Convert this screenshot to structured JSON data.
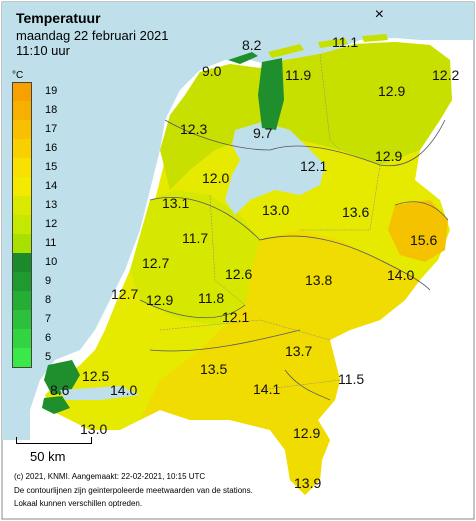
{
  "header": {
    "title": "Temperatuur",
    "date": "maandag 22 februari 2021",
    "time": "11:10 uur"
  },
  "close_label": "×",
  "legend": {
    "unit": "°C",
    "items": [
      {
        "label": "19",
        "color": "#f7a100"
      },
      {
        "label": "18",
        "color": "#f8b000"
      },
      {
        "label": "17",
        "color": "#f8c000"
      },
      {
        "label": "16",
        "color": "#f8d000"
      },
      {
        "label": "15",
        "color": "#f8e000"
      },
      {
        "label": "14",
        "color": "#f4ea00"
      },
      {
        "label": "13",
        "color": "#d9ea00"
      },
      {
        "label": "12",
        "color": "#c4e800"
      },
      {
        "label": "11",
        "color": "#a8e000"
      },
      {
        "label": "10",
        "color": "#1a8a2a"
      },
      {
        "label": "9",
        "color": "#1f9a30"
      },
      {
        "label": "8",
        "color": "#25ad36"
      },
      {
        "label": "7",
        "color": "#2cc03c"
      },
      {
        "label": "6",
        "color": "#33d442"
      },
      {
        "label": "5",
        "color": "#3ae848"
      }
    ]
  },
  "colors": {
    "sea": "#bfe0ea",
    "land_north": "#c8e000",
    "land_central": "#e6ea00",
    "land_south": "#f0dc00",
    "warm_spot": "#f5c200",
    "cold_spot": "#1f8f2e",
    "foreign_land": "#ffffff"
  },
  "stations": [
    {
      "name": "station-den-helder-north",
      "value": "8.2"
    },
    {
      "name": "station-wadden-east",
      "value": "11.1"
    },
    {
      "name": "station-texel",
      "value": "9.0"
    },
    {
      "name": "station-leeuwarden",
      "value": "11.9"
    },
    {
      "name": "station-groningen-east",
      "value": "12.2"
    },
    {
      "name": "station-den-helder",
      "value": "12.3"
    },
    {
      "name": "station-stavoren",
      "value": "9.7"
    },
    {
      "name": "station-drenthe",
      "value": "12.9"
    },
    {
      "name": "station-ijsselmeer",
      "value": "12.1"
    },
    {
      "name": "station-hoogeveen",
      "value": "12.9"
    },
    {
      "name": "station-berkhout",
      "value": "12.0"
    },
    {
      "name": "station-wijk-aan-zee",
      "value": "13.1"
    },
    {
      "name": "station-lelystad",
      "value": "13.0"
    },
    {
      "name": "station-heino",
      "value": "13.6"
    },
    {
      "name": "station-twente",
      "value": "15.6"
    },
    {
      "name": "station-schiphol",
      "value": "11.7"
    },
    {
      "name": "station-valkenburg",
      "value": "12.7"
    },
    {
      "name": "station-de-bilt",
      "value": "12.6"
    },
    {
      "name": "station-deelen",
      "value": "13.8"
    },
    {
      "name": "station-hupsel",
      "value": "14.0"
    },
    {
      "name": "station-hoek-van-holland",
      "value": "12.7"
    },
    {
      "name": "station-rotterdam",
      "value": "12.9"
    },
    {
      "name": "station-cabauw",
      "value": "11.8"
    },
    {
      "name": "station-herwijnen",
      "value": "12.1"
    },
    {
      "name": "station-volkel",
      "value": "13.7"
    },
    {
      "name": "station-gilze-rijen",
      "value": "13.5"
    },
    {
      "name": "station-vlissingen-north",
      "value": "12.5"
    },
    {
      "name": "station-vlissingen",
      "value": "8.6"
    },
    {
      "name": "station-woensdrecht",
      "value": "14.0"
    },
    {
      "name": "station-eindhoven",
      "value": "14.1"
    },
    {
      "name": "station-ell",
      "value": "11.5"
    },
    {
      "name": "station-westdorpe",
      "value": "13.0"
    },
    {
      "name": "station-arcen",
      "value": "12.9"
    },
    {
      "name": "station-maastricht",
      "value": "13.9"
    }
  ],
  "scale": {
    "label": "50 km"
  },
  "footer": {
    "line1": "(c) 2021, KNMI. Aangemaakt: 22-02-2021, 10:15 UTC",
    "line2": "De contourlijnen zijn geinterpoleerde meetwaarden van de stations.",
    "line3": "Lokaal kunnen verschillen optreden."
  }
}
